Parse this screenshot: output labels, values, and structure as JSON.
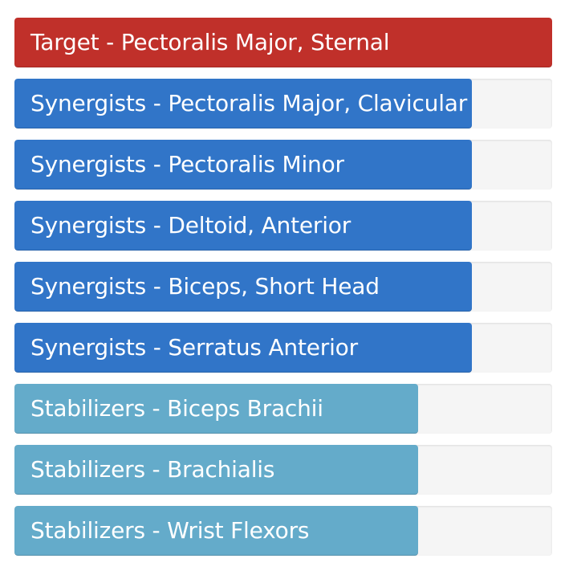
{
  "muscles": [
    {
      "label": "Target - Pectoralis Major, Sternal",
      "level": 1.0,
      "color": "#c0302a"
    },
    {
      "label": "Synergists - Pectoralis Major, Clavicular",
      "level": 0.85,
      "color": "#3175c8"
    },
    {
      "label": "Synergists - Pectoralis Minor",
      "level": 0.85,
      "color": "#3175c8"
    },
    {
      "label": "Synergists - Deltoid, Anterior",
      "level": 0.85,
      "color": "#3175c8"
    },
    {
      "label": "Synergists - Biceps, Short Head",
      "level": 0.85,
      "color": "#3175c8"
    },
    {
      "label": "Synergists - Serratus Anterior",
      "level": 0.85,
      "color": "#3175c8"
    },
    {
      "label": "Stabilizers - Biceps Brachii",
      "level": 0.75,
      "color": "#64abca"
    },
    {
      "label": "Stabilizers - Brachialis",
      "level": 0.75,
      "color": "#64abca"
    },
    {
      "label": "Stabilizers - Wrist Flexors",
      "level": 0.75,
      "color": "#64abca"
    }
  ]
}
